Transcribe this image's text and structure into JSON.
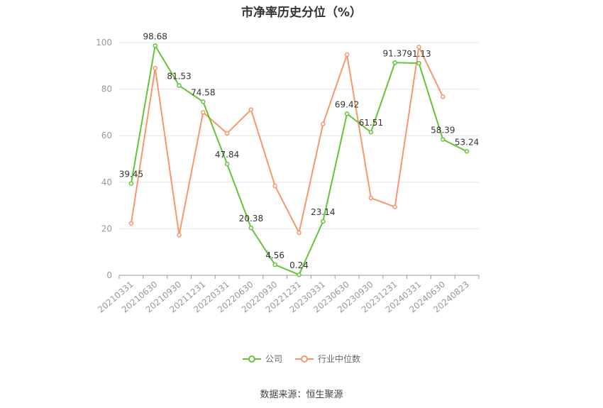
{
  "chart_data": {
    "type": "line",
    "title": "市净率历史分位（%）",
    "categories": [
      "20210331",
      "20210630",
      "20210930",
      "20211231",
      "20220331",
      "20220630",
      "20220930",
      "20221231",
      "20230331",
      "20230630",
      "20230930",
      "20231231",
      "20240331",
      "20240630",
      "20240823"
    ],
    "series": [
      {
        "name": "公司",
        "color": "#67c23a",
        "values": [
          39.45,
          98.68,
          81.53,
          74.58,
          47.84,
          20.38,
          4.56,
          0.24,
          23.14,
          69.42,
          61.51,
          91.37,
          91.13,
          58.39,
          53.24
        ],
        "labels": [
          "39.45",
          "98.68",
          "81.53",
          "74.58",
          "47.84",
          "20.38",
          "4.56",
          "0.24",
          "23.14",
          "69.42",
          "61.51",
          "91.37",
          "91.13",
          "58.39",
          "53.24"
        ]
      },
      {
        "name": "行业中位数",
        "color": "#f5976e",
        "values": [
          22.3,
          89.0,
          17.3,
          70.0,
          61.0,
          71.2,
          38.4,
          18.3,
          65.0,
          94.8,
          33.2,
          29.4,
          98.1,
          76.7,
          null
        ]
      }
    ],
    "ylim": [
      0,
      100
    ],
    "yticks": [
      "0",
      "20",
      "40",
      "60",
      "80",
      "100"
    ],
    "grid": true,
    "legend_position": "bottom"
  },
  "source": "数据来源：恒生聚源"
}
